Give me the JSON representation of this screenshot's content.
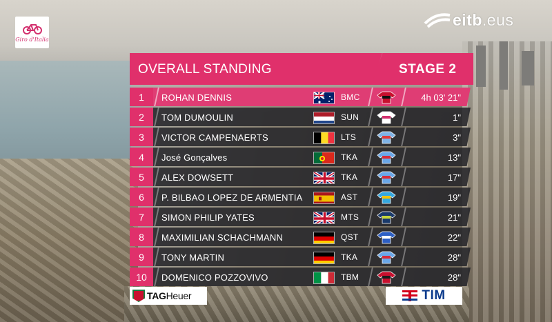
{
  "broadcast": {
    "channel_logo": "eitb",
    "channel_domain": ".eus",
    "race_logo_text": "Giro d'Italia"
  },
  "standings": {
    "title": "OVERALL STANDING",
    "stage": "STAGE 2",
    "rows": [
      {
        "pos": "1",
        "name": "ROHAN DENNIS",
        "country": "AUS",
        "team": "BMC",
        "time": "4h 03' 21\""
      },
      {
        "pos": "2",
        "name": "TOM DUMOULIN",
        "country": "NED",
        "team": "SUN",
        "time": "1\""
      },
      {
        "pos": "3",
        "name": "VICTOR CAMPENAERTS",
        "country": "BEL",
        "team": "LTS",
        "time": "3\""
      },
      {
        "pos": "4",
        "name": "José Gonçalves",
        "country": "POR",
        "team": "TKA",
        "time": "13\""
      },
      {
        "pos": "5",
        "name": "ALEX DOWSETT",
        "country": "GBR",
        "team": "TKA",
        "time": "17\""
      },
      {
        "pos": "6",
        "name": "P. BILBAO LOPEZ DE ARMENTIA",
        "country": "ESP",
        "team": "AST",
        "time": "19\""
      },
      {
        "pos": "7",
        "name": "SIMON PHILIP YATES",
        "country": "GBR",
        "team": "MTS",
        "time": "21\""
      },
      {
        "pos": "8",
        "name": "MAXIMILIAN SCHACHMANN",
        "country": "GER",
        "team": "QST",
        "time": "22\""
      },
      {
        "pos": "9",
        "name": "TONY MARTIN",
        "country": "GER",
        "team": "TKA",
        "time": "28\""
      },
      {
        "pos": "10",
        "name": "DOMENICO POZZOVIVO",
        "country": "ITA",
        "team": "TBM",
        "time": "28\""
      }
    ]
  },
  "sponsors": {
    "left": "TAG",
    "left_suffix": "Heuer",
    "right": "TIM"
  },
  "colors": {
    "accent_pink": "#e0306b",
    "row_dark": "#26262a"
  }
}
